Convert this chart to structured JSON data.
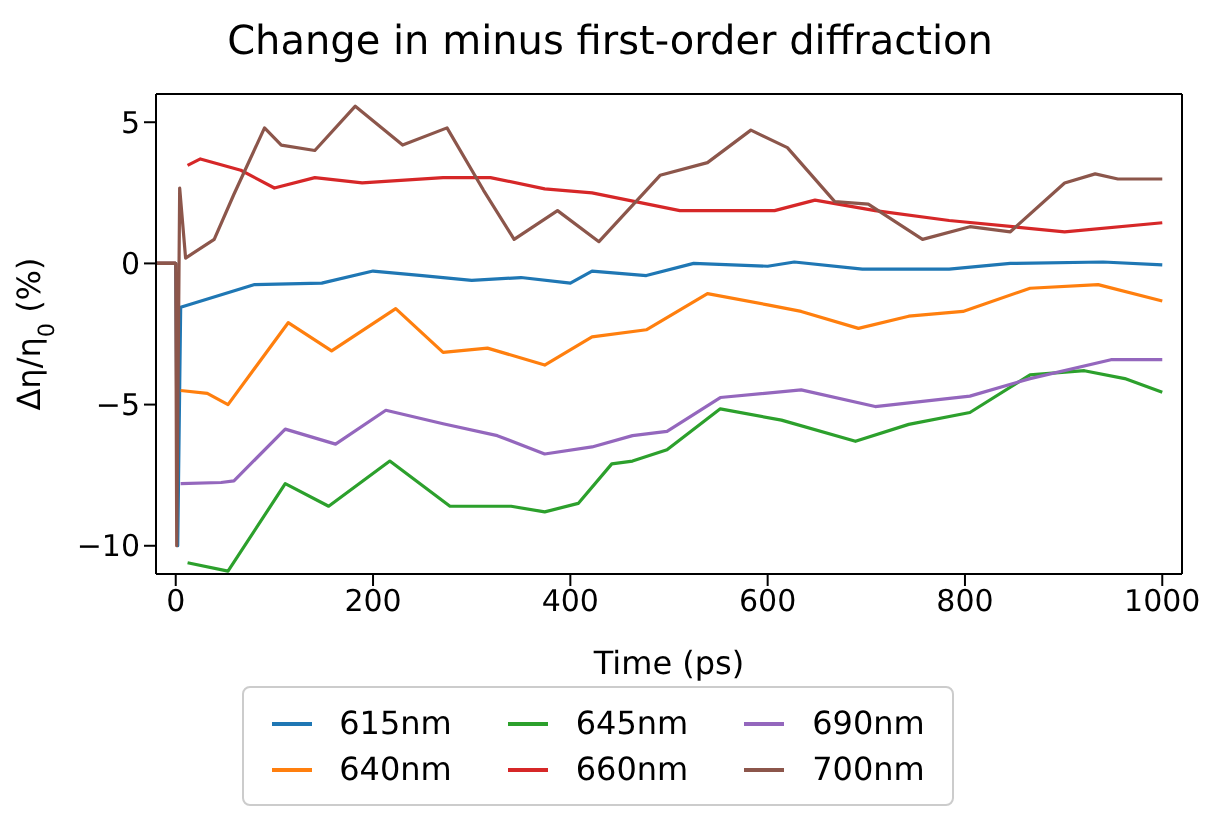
{
  "chart_data": {
    "type": "line",
    "title": "Change in minus first-order diffraction",
    "xlabel": "Time (ps)",
    "ylabel": "Δη/η$_{0}$ (%)",
    "xlim": [
      -20,
      1020
    ],
    "ylim": [
      -11,
      6
    ],
    "xticks": [
      0,
      200,
      400,
      600,
      800,
      1000
    ],
    "yticks": [
      -10,
      -5,
      0,
      5
    ],
    "grid": false,
    "legend": "bottom",
    "marker": "none",
    "line_style": "solid",
    "series": [
      {
        "name": "615nm",
        "color": "#1f77b4",
        "x": [
          -20,
          0,
          2,
          5,
          80,
          148,
          200,
          250,
          300,
          350,
          400,
          422,
          477,
          525,
          600,
          627,
          696,
          784,
          846,
          940,
          1000
        ],
        "values": [
          0,
          0,
          -10,
          -1.55,
          -0.75,
          -0.7,
          -0.27,
          -0.43,
          -0.6,
          -0.5,
          -0.7,
          -0.27,
          -0.43,
          0,
          -0.1,
          0.05,
          -0.2,
          -0.2,
          0,
          0.05,
          -0.05
        ]
      },
      {
        "name": "640nm",
        "color": "#ff7f0e",
        "x": [
          -20,
          0,
          2,
          5,
          32,
          53,
          114,
          158,
          223,
          271,
          316,
          374,
          422,
          477,
          539,
          600,
          634,
          692,
          743,
          798,
          866,
          935,
          1000
        ],
        "values": [
          0,
          0,
          null,
          -4.5,
          -4.6,
          -5.0,
          -2.1,
          -3.1,
          -1.6,
          -3.15,
          -3.0,
          -3.6,
          -2.6,
          -2.35,
          -1.07,
          -1.47,
          -1.7,
          -2.3,
          -1.87,
          -1.7,
          -0.88,
          -0.75,
          -1.33
        ]
      },
      {
        "name": "645nm",
        "color": "#2ca02c",
        "x": [
          -20,
          0,
          2,
          12,
          53,
          111,
          155,
          217,
          278,
          340,
          374,
          408,
          442,
          463,
          498,
          552,
          614,
          689,
          743,
          805,
          866,
          921,
          962,
          1000
        ],
        "values": [
          0,
          0,
          null,
          -10.6,
          -10.9,
          -7.8,
          -8.6,
          -7.0,
          -8.6,
          -8.6,
          -8.8,
          -8.5,
          -7.1,
          -7.0,
          -6.6,
          -5.15,
          -5.55,
          -6.3,
          -5.7,
          -5.28,
          -3.95,
          -3.8,
          -4.08,
          -4.56
        ]
      },
      {
        "name": "660nm",
        "color": "#d62728",
        "x": [
          -20,
          0,
          2,
          12,
          25,
          66,
          100,
          141,
          189,
          271,
          319,
          374,
          422,
          511,
          607,
          648,
          709,
          784,
          901,
          1000
        ],
        "values": [
          0,
          0,
          null,
          3.47,
          3.7,
          3.3,
          2.67,
          3.04,
          2.85,
          3.04,
          3.04,
          2.64,
          2.5,
          1.87,
          1.87,
          2.24,
          1.87,
          1.52,
          1.12,
          1.44
        ]
      },
      {
        "name": "690nm",
        "color": "#9467bd",
        "x": [
          -20,
          0,
          3,
          5,
          46,
          59,
          111,
          162,
          213,
          271,
          326,
          374,
          422,
          463,
          498,
          552,
          634,
          709,
          805,
          866,
          948,
          1000
        ],
        "values": [
          0,
          0,
          null,
          -7.8,
          -7.76,
          -7.7,
          -5.87,
          -6.4,
          -5.2,
          -5.68,
          -6.1,
          -6.75,
          -6.5,
          -6.1,
          -5.95,
          -4.75,
          -4.48,
          -5.07,
          -4.7,
          -4.08,
          -3.41,
          -3.41
        ]
      },
      {
        "name": "700nm",
        "color": "#8c564b",
        "x": [
          -20,
          0,
          1,
          4,
          10,
          39,
          59,
          90,
          107,
          141,
          182,
          230,
          275,
          312,
          343,
          387,
          429,
          491,
          539,
          583,
          620,
          668,
          702,
          757,
          805,
          846,
          901,
          932,
          955,
          1000
        ],
        "values": [
          0,
          0,
          -10,
          2.67,
          0.19,
          0.85,
          2.45,
          4.8,
          4.19,
          4.0,
          5.57,
          4.19,
          4.8,
          2.59,
          0.85,
          1.87,
          0.77,
          3.12,
          3.57,
          4.72,
          4.1,
          2.19,
          2.1,
          0.85,
          1.3,
          1.12,
          2.85,
          3.17,
          2.99,
          2.99
        ]
      }
    ]
  }
}
